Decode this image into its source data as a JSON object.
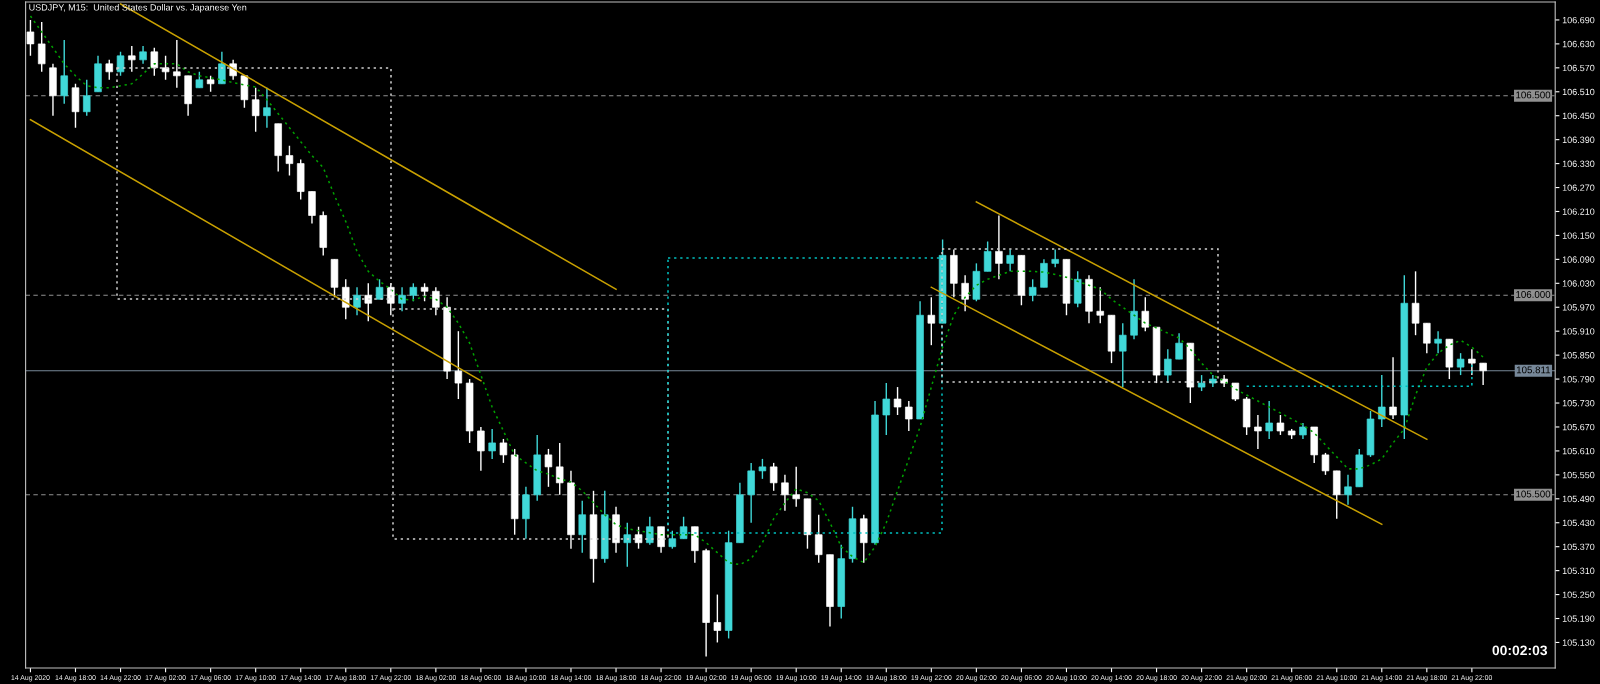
{
  "chart_data": {
    "type": "candlestick",
    "title": "USDJPY, M15:  United States Dollar vs. Japanese Yen",
    "categories": [
      "14 Aug 2020",
      null,
      null,
      null,
      "14 Aug 18:00",
      null,
      null,
      null,
      "14 Aug 22:00",
      null,
      null,
      null,
      "17 Aug 02:00",
      null,
      null,
      null,
      "17 Aug 06:00",
      null,
      null,
      null,
      "17 Aug 10:00",
      null,
      null,
      null,
      "17 Aug 14:00",
      null,
      null,
      null,
      "17 Aug 18:00",
      null,
      null,
      null,
      "17 Aug 22:00",
      null,
      null,
      null,
      "18 Aug 02:00",
      null,
      null,
      null,
      "18 Aug 06:00",
      null,
      null,
      null,
      "18 Aug 10:00",
      null,
      null,
      null,
      "18 Aug 14:00",
      null,
      null,
      null,
      "18 Aug 18:00",
      null,
      null,
      null,
      "18 Aug 22:00",
      null,
      null,
      null,
      "19 Aug 02:00",
      null,
      null,
      null,
      "19 Aug 06:00",
      null,
      null,
      null,
      "19 Aug 10:00",
      null,
      null,
      null,
      "19 Aug 14:00",
      null,
      null,
      null,
      "19 Aug 18:00",
      null,
      null,
      null,
      "19 Aug 22:00",
      null,
      null,
      null,
      "20 Aug 02:00",
      null,
      null,
      null,
      "20 Aug 06:00",
      null,
      null,
      null,
      "20 Aug 10:00",
      null,
      null,
      null,
      "20 Aug 14:00",
      null,
      null,
      null,
      "20 Aug 18:00",
      null,
      null,
      null,
      "20 Aug 22:00",
      null,
      null,
      null,
      "21 Aug 02:00",
      null,
      null,
      null,
      "21 Aug 06:00",
      null,
      null,
      null,
      "21 Aug 10:00",
      null,
      null,
      null,
      "21 Aug 14:00",
      null,
      null,
      null,
      "21 Aug 18:00",
      null,
      null,
      null,
      "21 Aug 22:00",
      null
    ],
    "ohlc": [
      [
        106.66,
        106.69,
        106.6,
        106.63
      ],
      [
        106.63,
        106.685,
        106.56,
        106.58
      ],
      [
        106.57,
        106.58,
        106.45,
        106.5
      ],
      [
        106.5,
        106.64,
        106.48,
        106.55
      ],
      [
        106.52,
        106.53,
        106.42,
        106.46
      ],
      [
        106.46,
        106.54,
        106.45,
        106.5
      ],
      [
        106.51,
        106.6,
        106.51,
        106.58
      ],
      [
        106.58,
        106.59,
        106.54,
        106.56
      ],
      [
        106.56,
        106.61,
        106.55,
        106.6
      ],
      [
        106.6,
        106.625,
        106.56,
        106.59
      ],
      [
        106.59,
        106.625,
        106.58,
        106.61
      ],
      [
        106.61,
        106.62,
        106.55,
        106.57
      ],
      [
        106.57,
        106.6,
        106.54,
        106.56
      ],
      [
        106.56,
        106.64,
        106.52,
        106.55
      ],
      [
        106.55,
        106.55,
        106.45,
        106.48
      ],
      [
        106.52,
        106.56,
        106.52,
        106.54
      ],
      [
        106.54,
        106.55,
        106.51,
        106.53
      ],
      [
        106.53,
        106.61,
        106.53,
        106.58
      ],
      [
        106.58,
        106.59,
        106.54,
        106.55
      ],
      [
        106.55,
        106.55,
        106.47,
        106.49
      ],
      [
        106.49,
        106.52,
        106.41,
        106.45
      ],
      [
        106.45,
        106.52,
        106.42,
        106.47
      ],
      [
        106.43,
        106.43,
        106.31,
        106.35
      ],
      [
        106.35,
        106.375,
        106.3,
        106.33
      ],
      [
        106.33,
        106.34,
        106.24,
        106.26
      ],
      [
        106.26,
        106.26,
        106.18,
        106.2
      ],
      [
        106.2,
        106.21,
        106.1,
        106.12
      ],
      [
        106.09,
        106.09,
        105.995,
        106.02
      ],
      [
        106.02,
        106.04,
        105.94,
        105.97
      ],
      [
        105.97,
        106.02,
        105.95,
        106.0
      ],
      [
        106.0,
        106.03,
        105.935,
        105.98
      ],
      [
        105.99,
        106.04,
        105.99,
        106.02
      ],
      [
        106.02,
        106.03,
        105.95,
        105.98
      ],
      [
        105.98,
        106.02,
        105.96,
        106.0
      ],
      [
        106.0,
        106.03,
        105.985,
        106.02
      ],
      [
        106.02,
        106.03,
        105.985,
        106.01
      ],
      [
        106.01,
        106.02,
        105.95,
        105.97
      ],
      [
        105.97,
        105.995,
        105.79,
        105.81
      ],
      [
        105.81,
        105.91,
        105.74,
        105.78
      ],
      [
        105.78,
        105.79,
        105.63,
        105.66
      ],
      [
        105.66,
        105.67,
        105.56,
        105.61
      ],
      [
        105.61,
        105.665,
        105.59,
        105.63
      ],
      [
        105.63,
        105.64,
        105.58,
        105.6
      ],
      [
        105.6,
        105.615,
        105.4,
        105.44
      ],
      [
        105.44,
        105.52,
        105.39,
        105.5
      ],
      [
        105.5,
        105.65,
        105.485,
        105.6
      ],
      [
        105.6,
        105.615,
        105.52,
        105.57
      ],
      [
        105.57,
        105.63,
        105.5,
        105.53
      ],
      [
        105.53,
        105.56,
        105.365,
        105.4
      ],
      [
        105.4,
        105.485,
        105.355,
        105.45
      ],
      [
        105.45,
        105.51,
        105.28,
        105.34
      ],
      [
        105.34,
        105.51,
        105.33,
        105.45
      ],
      [
        105.45,
        105.47,
        105.355,
        105.38
      ],
      [
        105.38,
        105.43,
        105.32,
        105.4
      ],
      [
        105.4,
        105.42,
        105.365,
        105.38
      ],
      [
        105.38,
        105.445,
        105.375,
        105.42
      ],
      [
        105.42,
        105.42,
        105.355,
        105.37
      ],
      [
        105.37,
        105.41,
        105.365,
        105.39
      ],
      [
        105.39,
        105.445,
        105.39,
        105.42
      ],
      [
        105.42,
        105.42,
        105.33,
        105.36
      ],
      [
        105.36,
        105.365,
        105.095,
        105.18
      ],
      [
        105.18,
        105.25,
        105.13,
        105.16
      ],
      [
        105.16,
        105.41,
        105.14,
        105.38
      ],
      [
        105.38,
        105.53,
        105.38,
        105.5
      ],
      [
        105.5,
        105.58,
        105.43,
        105.56
      ],
      [
        105.56,
        105.59,
        105.54,
        105.57
      ],
      [
        105.57,
        105.58,
        105.51,
        105.53
      ],
      [
        105.53,
        105.55,
        105.46,
        105.5
      ],
      [
        105.5,
        105.57,
        105.47,
        105.49
      ],
      [
        105.49,
        105.49,
        105.365,
        105.4
      ],
      [
        105.4,
        105.45,
        105.33,
        105.35
      ],
      [
        105.35,
        105.35,
        105.17,
        105.22
      ],
      [
        105.22,
        105.375,
        105.19,
        105.34
      ],
      [
        105.34,
        105.47,
        105.33,
        105.44
      ],
      [
        105.44,
        105.45,
        105.33,
        105.38
      ],
      [
        105.38,
        105.735,
        105.375,
        105.7
      ],
      [
        105.7,
        105.78,
        105.65,
        105.74
      ],
      [
        105.74,
        105.77,
        105.7,
        105.72
      ],
      [
        105.72,
        105.735,
        105.66,
        105.69
      ],
      [
        105.69,
        105.985,
        105.69,
        105.95
      ],
      [
        105.95,
        105.995,
        105.875,
        105.93
      ],
      [
        105.93,
        106.14,
        105.93,
        106.1
      ],
      [
        106.1,
        106.115,
        105.995,
        106.03
      ],
      [
        106.03,
        106.05,
        105.96,
        105.99
      ],
      [
        105.99,
        106.08,
        105.985,
        106.06
      ],
      [
        106.06,
        106.135,
        106.06,
        106.11
      ],
      [
        106.11,
        106.2,
        106.04,
        106.08
      ],
      [
        106.08,
        106.115,
        106.06,
        106.1
      ],
      [
        106.1,
        106.1,
        105.975,
        106.0
      ],
      [
        106.0,
        106.04,
        105.985,
        106.02
      ],
      [
        106.02,
        106.09,
        106.02,
        106.08
      ],
      [
        106.08,
        106.115,
        106.07,
        106.09
      ],
      [
        106.09,
        106.09,
        105.95,
        105.98
      ],
      [
        105.98,
        106.06,
        105.97,
        106.04
      ],
      [
        106.04,
        106.05,
        105.93,
        105.96
      ],
      [
        105.96,
        106.02,
        105.93,
        105.95
      ],
      [
        105.95,
        105.95,
        105.83,
        105.86
      ],
      [
        105.86,
        105.93,
        105.77,
        105.9
      ],
      [
        105.9,
        106.04,
        105.89,
        105.96
      ],
      [
        105.96,
        105.995,
        105.91,
        105.92
      ],
      [
        105.92,
        105.92,
        105.78,
        105.8
      ],
      [
        105.8,
        105.865,
        105.78,
        105.84
      ],
      [
        105.84,
        105.905,
        105.84,
        105.88
      ],
      [
        105.88,
        105.88,
        105.73,
        105.77
      ],
      [
        105.77,
        105.8,
        105.76,
        105.78
      ],
      [
        105.78,
        105.8,
        105.77,
        105.79
      ],
      [
        105.79,
        105.8,
        105.77,
        105.78
      ],
      [
        105.78,
        105.78,
        105.735,
        105.74
      ],
      [
        105.74,
        105.745,
        105.65,
        105.67
      ],
      [
        105.67,
        105.7,
        105.615,
        105.66
      ],
      [
        105.66,
        105.735,
        105.64,
        105.68
      ],
      [
        105.68,
        105.7,
        105.65,
        105.66
      ],
      [
        105.66,
        105.665,
        105.64,
        105.65
      ],
      [
        105.65,
        105.68,
        105.64,
        105.67
      ],
      [
        105.67,
        105.67,
        105.58,
        105.6
      ],
      [
        105.6,
        105.605,
        105.55,
        105.56
      ],
      [
        105.56,
        105.56,
        105.44,
        105.5
      ],
      [
        105.5,
        105.55,
        105.475,
        105.52
      ],
      [
        105.52,
        105.615,
        105.52,
        105.6
      ],
      [
        105.6,
        105.71,
        105.595,
        105.69
      ],
      [
        105.69,
        105.8,
        105.67,
        105.72
      ],
      [
        105.72,
        105.845,
        105.69,
        105.7
      ],
      [
        105.7,
        106.05,
        105.64,
        105.98
      ],
      [
        105.98,
        106.06,
        105.9,
        105.93
      ],
      [
        105.93,
        105.93,
        105.855,
        105.88
      ],
      [
        105.88,
        105.91,
        105.855,
        105.89
      ],
      [
        105.89,
        105.89,
        105.79,
        105.82
      ],
      [
        105.82,
        105.855,
        105.8,
        105.84
      ],
      [
        105.84,
        105.865,
        105.8,
        105.83
      ],
      [
        105.83,
        105.83,
        105.775,
        105.811
      ]
    ],
    "colors": [
      "#ffffff",
      "#ffffff",
      "#ffffff",
      "#40d8d8",
      "#ffffff",
      "#40d8d8",
      "#40d8d8",
      "#ffffff",
      "#40d8d8",
      "#ffffff",
      "#40d8d8",
      "#ffffff",
      "#ffffff",
      "#ffffff",
      "#ffffff",
      "#40d8d8",
      "#ffffff",
      "#40d8d8",
      "#ffffff",
      "#ffffff",
      "#ffffff",
      "#40d8d8",
      "#ffffff",
      "#ffffff",
      "#ffffff",
      "#ffffff",
      "#ffffff",
      "#ffffff",
      "#ffffff",
      "#40d8d8",
      "#ffffff",
      "#40d8d8",
      "#ffffff",
      "#40d8d8",
      "#40d8d8",
      "#ffffff",
      "#ffffff",
      "#ffffff",
      "#ffffff",
      "#ffffff",
      "#ffffff",
      "#40d8d8",
      "#ffffff",
      "#ffffff",
      "#40d8d8",
      "#40d8d8",
      "#ffffff",
      "#ffffff",
      "#ffffff",
      "#40d8d8",
      "#ffffff",
      "#40d8d8",
      "#ffffff",
      "#40d8d8",
      "#ffffff",
      "#40d8d8",
      "#ffffff",
      "#40d8d8",
      "#40d8d8",
      "#ffffff",
      "#ffffff",
      "#ffffff",
      "#40d8d8",
      "#40d8d8",
      "#40d8d8",
      "#40d8d8",
      "#ffffff",
      "#ffffff",
      "#ffffff",
      "#ffffff",
      "#ffffff",
      "#ffffff",
      "#40d8d8",
      "#40d8d8",
      "#ffffff",
      "#40d8d8",
      "#40d8d8",
      "#ffffff",
      "#ffffff",
      "#40d8d8",
      "#ffffff",
      "#40d8d8",
      "#ffffff",
      "#ffffff",
      "#40d8d8",
      "#40d8d8",
      "#ffffff",
      "#40d8d8",
      "#ffffff",
      "#40d8d8",
      "#40d8d8",
      "#40d8d8",
      "#ffffff",
      "#40d8d8",
      "#ffffff",
      "#ffffff",
      "#ffffff",
      "#40d8d8",
      "#40d8d8",
      "#ffffff",
      "#ffffff",
      "#40d8d8",
      "#40d8d8",
      "#ffffff",
      "#40d8d8",
      "#40d8d8",
      "#ffffff",
      "#ffffff",
      "#ffffff",
      "#ffffff",
      "#40d8d8",
      "#ffffff",
      "#ffffff",
      "#40d8d8",
      "#ffffff",
      "#ffffff",
      "#ffffff",
      "#40d8d8",
      "#40d8d8",
      "#40d8d8",
      "#40d8d8",
      "#ffffff",
      "#40d8d8",
      "#ffffff",
      "#ffffff",
      "#40d8d8",
      "#ffffff",
      "#40d8d8",
      "#ffffff",
      "#ffffff"
    ],
    "series": [
      {
        "type": "line",
        "color": "#00a000",
        "line_style": "dotted",
        "values": [
          106.7,
          106.66,
          106.62,
          106.58,
          106.55,
          106.525,
          106.52,
          106.52,
          106.525,
          106.53,
          106.555,
          106.58,
          106.58,
          106.58,
          106.56,
          106.55,
          106.545,
          106.54,
          106.533,
          106.527,
          106.522,
          106.49,
          106.455,
          106.42,
          106.385,
          106.35,
          106.32,
          106.25,
          106.185,
          106.11,
          106.06,
          106.035,
          106.015,
          105.99,
          105.988,
          105.997,
          105.99,
          105.97,
          105.93,
          105.88,
          105.8,
          105.72,
          105.66,
          105.6,
          105.58,
          105.56,
          105.552,
          105.54,
          105.532,
          105.51,
          105.48,
          105.45,
          105.425,
          105.415,
          105.41,
          105.405,
          105.4,
          105.4,
          105.4,
          105.4,
          105.38,
          105.355,
          105.33,
          105.325,
          105.34,
          105.38,
          105.44,
          105.48,
          105.515,
          105.505,
          105.485,
          105.43,
          105.37,
          105.345,
          105.33,
          105.37,
          105.43,
          105.51,
          105.59,
          105.67,
          105.77,
          105.87,
          105.95,
          105.995,
          106.025,
          106.04,
          106.05,
          106.06,
          106.06,
          106.06,
          106.058,
          106.052,
          106.045,
          106.035,
          106.025,
          106.015,
          105.99,
          105.97,
          105.95,
          105.93,
          105.918,
          105.905,
          105.893,
          105.865,
          105.83,
          105.8,
          105.785,
          105.765,
          105.75,
          105.735,
          105.72,
          105.705,
          105.69,
          105.675,
          105.655,
          105.625,
          105.595,
          105.565,
          105.565,
          105.575,
          105.59,
          105.63,
          105.665,
          105.75,
          105.82,
          105.855,
          105.875,
          105.887,
          105.87,
          105.845
        ]
      },
      {
        "type": "line",
        "color": "#c8a000",
        "line_style": "solid",
        "x": [
          "14 Aug 22:00",
          "18 Aug 18:00"
        ],
        "values": [
          106.73,
          106.015
        ]
      },
      {
        "type": "line",
        "color": "#c8a000",
        "line_style": "solid",
        "x": [
          "14 Aug 2020",
          "18 Aug 06:00"
        ],
        "values": [
          106.44,
          105.786
        ]
      },
      {
        "type": "line",
        "color": "#c8a000",
        "line_style": "solid",
        "x": [
          "20 Aug 02:00",
          "21 Aug 18:00"
        ],
        "values": [
          106.234,
          105.639
        ]
      },
      {
        "type": "line",
        "color": "#c8a000",
        "line_style": "solid",
        "x": [
          "19 Aug 22:00",
          "21 Aug 14:00"
        ],
        "values": [
          106.02,
          105.426
        ]
      },
      {
        "type": "line",
        "color": "#00c0c0",
        "line_style": "dotted",
        "x": [
          "21 Aug 02:00",
          "21 Aug 22:00",
          "21 Aug 22:00"
        ],
        "values": [
          105.772,
          105.772,
          105.826
        ]
      }
    ],
    "ref_lines": [
      {
        "axis": "y",
        "value": 106.5,
        "label": "106.500",
        "color": "#909090",
        "line_style": "dashed"
      },
      {
        "axis": "y",
        "value": 106.0,
        "label": "106.000",
        "color": "#909090",
        "line_style": "dashed"
      },
      {
        "axis": "y",
        "value": 105.811,
        "label": "105.811",
        "color": "#778899",
        "line_style": "solid"
      },
      {
        "axis": "y",
        "value": 105.5,
        "label": "105.500",
        "color": "#909090",
        "line_style": "dashed"
      }
    ],
    "annotations": [
      "00:02:03"
    ],
    "ylim": [
      105.066,
      106.735
    ],
    "yticks": [
      {
        "value": 105.13,
        "label": "105.130"
      },
      {
        "value": 105.19,
        "label": "105.190"
      },
      {
        "value": 105.25,
        "label": "105.250"
      },
      {
        "value": 105.31,
        "label": "105.310"
      },
      {
        "value": 105.37,
        "label": "105.370"
      },
      {
        "value": 105.43,
        "label": "105.430"
      },
      {
        "value": 105.49,
        "label": "105.490"
      },
      {
        "value": 105.55,
        "label": "105.550"
      },
      {
        "value": 105.61,
        "label": "105.610"
      },
      {
        "value": 105.67,
        "label": "105.670"
      },
      {
        "value": 105.73,
        "label": "105.730"
      },
      {
        "value": 105.79,
        "label": "105.790"
      },
      {
        "value": 105.85,
        "label": "105.850"
      },
      {
        "value": 105.91,
        "label": "105.910"
      },
      {
        "value": 105.97,
        "label": "105.970"
      },
      {
        "value": 106.03,
        "label": "106.030"
      },
      {
        "value": 106.09,
        "label": "106.090"
      },
      {
        "value": 106.15,
        "label": "106.150"
      },
      {
        "value": 106.21,
        "label": "106.210"
      },
      {
        "value": 106.27,
        "label": "106.270"
      },
      {
        "value": 106.33,
        "label": "106.330"
      },
      {
        "value": 106.39,
        "label": "106.390"
      },
      {
        "value": 106.45,
        "label": "106.450"
      },
      {
        "value": 106.51,
        "label": "106.510"
      },
      {
        "value": 106.57,
        "label": "106.570"
      },
      {
        "value": 106.63,
        "label": "106.630"
      },
      {
        "value": 106.69,
        "label": "106.690"
      }
    ],
    "grid": false
  }
}
